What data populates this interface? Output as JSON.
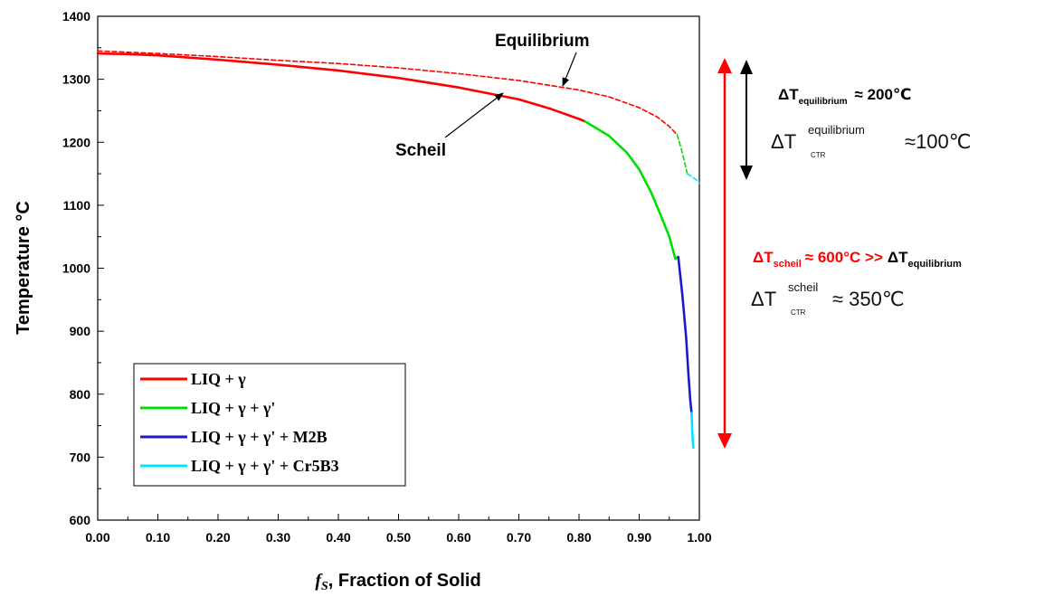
{
  "chart_data": {
    "type": "line",
    "xlabel": "Fraction of Solid",
    "xlabel_symbol": "f",
    "xlabel_symbol_sub": "S",
    "ylabel": "Temperature °C",
    "xlim": [
      0.0,
      1.0
    ],
    "ylim": [
      600,
      1400
    ],
    "x_ticks": [
      "0.00",
      "0.10",
      "0.20",
      "0.30",
      "0.40",
      "0.50",
      "0.60",
      "0.70",
      "0.80",
      "0.90",
      "1.00"
    ],
    "y_ticks": [
      "600",
      "700",
      "800",
      "900",
      "1000",
      "1100",
      "1200",
      "1300",
      "1400"
    ],
    "grid": false,
    "legend_position": "bottom-left",
    "legend": [
      {
        "label": "LIQ + γ",
        "color": "#ff0000"
      },
      {
        "label": "LIQ + γ + γ'",
        "color": "#00e000"
      },
      {
        "label": "LIQ + γ + γ' + M2B",
        "color": "#1a1acc"
      },
      {
        "label": "LIQ + γ + γ' + Cr5B3",
        "color": "#00e5ff"
      }
    ],
    "series": [
      {
        "curve": "Scheil",
        "phase": "LIQ + γ",
        "style": "solid",
        "color": "#ff0000",
        "x": [
          0.0,
          0.05,
          0.1,
          0.2,
          0.3,
          0.4,
          0.5,
          0.6,
          0.7,
          0.75,
          0.8,
          0.81
        ],
        "y": [
          1341,
          1340,
          1338,
          1331,
          1323,
          1314,
          1302,
          1287,
          1268,
          1254,
          1237,
          1233
        ]
      },
      {
        "curve": "Scheil",
        "phase": "LIQ + γ + γ'",
        "style": "solid",
        "color": "#00e000",
        "x": [
          0.81,
          0.85,
          0.88,
          0.9,
          0.92,
          0.935,
          0.95,
          0.96,
          0.965
        ],
        "y": [
          1233,
          1210,
          1183,
          1157,
          1120,
          1086,
          1050,
          1015,
          1018
        ]
      },
      {
        "curve": "Scheil",
        "phase": "LIQ + γ + γ' + M2B",
        "style": "solid",
        "color": "#1a1acc",
        "x": [
          0.965,
          0.972,
          0.978,
          0.982,
          0.985,
          0.987
        ],
        "y": [
          1018,
          955,
          890,
          830,
          790,
          770
        ]
      },
      {
        "curve": "Scheil",
        "phase": "LIQ + γ + γ' + Cr5B3",
        "style": "solid",
        "color": "#00e5ff",
        "x": [
          0.987,
          0.988,
          0.989,
          0.99
        ],
        "y": [
          770,
          745,
          728,
          715
        ]
      },
      {
        "curve": "Equilibrium",
        "phase": "LIQ + γ",
        "style": "dashed",
        "color": "#ff0000",
        "x": [
          0.0,
          0.1,
          0.2,
          0.3,
          0.4,
          0.5,
          0.6,
          0.7,
          0.8,
          0.85,
          0.9,
          0.93,
          0.95,
          0.963
        ],
        "y": [
          1345,
          1341,
          1336,
          1330,
          1325,
          1318,
          1309,
          1298,
          1283,
          1272,
          1255,
          1240,
          1225,
          1212
        ]
      },
      {
        "curve": "Equilibrium",
        "phase": "LIQ + γ + γ'",
        "style": "dashed",
        "color": "#00e000",
        "x": [
          0.963,
          0.97,
          0.975,
          0.98
        ],
        "y": [
          1212,
          1190,
          1170,
          1150
        ]
      },
      {
        "curve": "Equilibrium",
        "phase": "LIQ + γ + γ' + Cr5B3",
        "style": "dashed",
        "color": "#00e5ff",
        "x": [
          0.98,
          0.988,
          0.995,
          1.0
        ],
        "y": [
          1150,
          1145,
          1140,
          1135
        ]
      }
    ],
    "annotations": {
      "equilibrium_label": "Equilibrium",
      "scheil_label": "Scheil",
      "dt_eq_delta": "ΔT",
      "dt_eq_sub": "equilibrium",
      "dt_eq_value": "≈ 200℃",
      "dt_ctr_eq_delta": "ΔT",
      "dt_ctr_eq_sup": "equilibrium",
      "dt_ctr_eq_sub": "CTR",
      "dt_ctr_eq_value": "≈100℃",
      "dt_scheil_delta": "ΔT",
      "dt_scheil_sub": "scheil",
      "dt_scheil_value": "≈  600°C >>",
      "dt_scheil_cmp_delta": "ΔT",
      "dt_scheil_cmp_sub": "equilibrium",
      "dt_ctr_scheil_delta": "ΔT",
      "dt_ctr_scheil_sup": "scheil",
      "dt_ctr_scheil_sub": "CTR",
      "dt_ctr_scheil_value": "≈ 350℃"
    }
  }
}
